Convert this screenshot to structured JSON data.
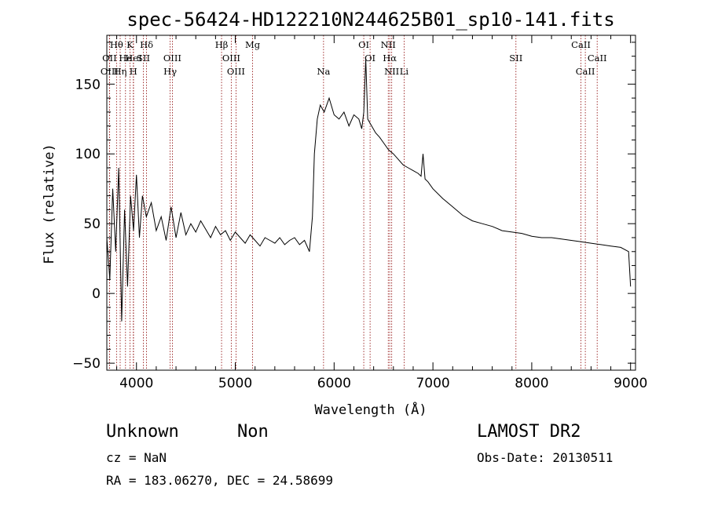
{
  "chart_data": {
    "type": "line",
    "title": "spec-56424-HD122210N244625B01_sp10-141.fits",
    "xlabel": "Wavelength (Å)",
    "ylabel": "Flux (relative)",
    "xlim": [
      3700,
      9050
    ],
    "ylim": [
      -55,
      185
    ],
    "xticks": [
      4000,
      5000,
      6000,
      7000,
      8000,
      9000
    ],
    "yticks": [
      -50,
      0,
      50,
      100,
      150
    ],
    "grid": false,
    "series": [
      {
        "x": [
          3700,
          3730,
          3760,
          3790,
          3820,
          3850,
          3880,
          3910,
          3940,
          3970,
          4000,
          4030,
          4060,
          4100,
          4150,
          4200,
          4250,
          4300,
          4350,
          4400,
          4450,
          4500,
          4550,
          4600,
          4650,
          4700,
          4750,
          4800,
          4850,
          4900,
          4950,
          5000,
          5050,
          5100,
          5150,
          5200,
          5250,
          5300,
          5350,
          5400,
          5450,
          5500,
          5550,
          5600,
          5650,
          5700,
          5750,
          5780,
          5800,
          5830,
          5860,
          5900,
          5950,
          6000,
          6050,
          6100,
          6150,
          6200,
          6250,
          6280,
          6300,
          6320,
          6340,
          6380,
          6420,
          6460,
          6500,
          6550,
          6600,
          6650,
          6700,
          6750,
          6800,
          6850,
          6880,
          6900,
          6920,
          6950,
          7000,
          7100,
          7200,
          7300,
          7400,
          7500,
          7600,
          7700,
          7800,
          7900,
          8000,
          8100,
          8200,
          8300,
          8400,
          8500,
          8600,
          8700,
          8800,
          8900,
          8980,
          9000
        ],
        "y": [
          40,
          10,
          75,
          30,
          90,
          -20,
          60,
          5,
          70,
          45,
          85,
          40,
          70,
          55,
          65,
          45,
          55,
          38,
          62,
          40,
          58,
          42,
          50,
          44,
          52,
          46,
          40,
          48,
          42,
          45,
          38,
          44,
          40,
          36,
          42,
          38,
          34,
          40,
          38,
          36,
          40,
          35,
          38,
          40,
          35,
          38,
          30,
          55,
          100,
          125,
          135,
          130,
          140,
          128,
          125,
          130,
          120,
          128,
          125,
          118,
          130,
          168,
          125,
          120,
          115,
          112,
          108,
          103,
          100,
          96,
          92,
          90,
          88,
          86,
          84,
          100,
          82,
          80,
          75,
          68,
          62,
          56,
          52,
          50,
          48,
          45,
          44,
          43,
          41,
          40,
          40,
          39,
          38,
          37,
          36,
          35,
          34,
          33,
          30,
          5
        ]
      }
    ],
    "spectral_lines": [
      {
        "label": "Hθ",
        "wavelength": 3798,
        "row": 1
      },
      {
        "label": "OII",
        "wavelength": 3727,
        "row": 2
      },
      {
        "label": "OIII",
        "wavelength": 3727,
        "row": 3
      },
      {
        "label": "He",
        "wavelength": 3889,
        "row": 2
      },
      {
        "label": "Hη",
        "wavelength": 3835,
        "row": 3
      },
      {
        "label": "K",
        "wavelength": 3934,
        "row": 1
      },
      {
        "label": "HeI",
        "wavelength": 3970,
        "row": 2
      },
      {
        "label": "H",
        "wavelength": 3968,
        "row": 3
      },
      {
        "label": "Hδ",
        "wavelength": 4102,
        "row": 1
      },
      {
        "label": "SII",
        "wavelength": 4070,
        "row": 2
      },
      {
        "label": "OIII",
        "wavelength": 4363,
        "row": 2
      },
      {
        "label": "Hγ",
        "wavelength": 4341,
        "row": 3
      },
      {
        "label": "Hβ",
        "wavelength": 4861,
        "row": 1
      },
      {
        "label": "OIII",
        "wavelength": 4959,
        "row": 2
      },
      {
        "label": "OIII",
        "wavelength": 5007,
        "row": 3
      },
      {
        "label": "Mg",
        "wavelength": 5175,
        "row": 1
      },
      {
        "label": "Na",
        "wavelength": 5893,
        "row": 3
      },
      {
        "label": "OI",
        "wavelength": 6300,
        "row": 1
      },
      {
        "label": "OI",
        "wavelength": 6364,
        "row": 2
      },
      {
        "label": "NII",
        "wavelength": 6548,
        "row": 1
      },
      {
        "label": "Hα",
        "wavelength": 6563,
        "row": 2
      },
      {
        "label": "NII",
        "wavelength": 6583,
        "row": 3
      },
      {
        "label": "Li",
        "wavelength": 6708,
        "row": 3
      },
      {
        "label": "SII",
        "wavelength": 7840,
        "row": 2
      },
      {
        "label": "CaII",
        "wavelength": 8498,
        "row": 1
      },
      {
        "label": "CaII",
        "wavelength": 8662,
        "row": 2
      },
      {
        "label": "CaII",
        "wavelength": 8542,
        "row": 3
      }
    ]
  },
  "info": {
    "class": "Unknown",
    "subclass": "Non",
    "survey": "LAMOST DR2",
    "cz": "cz = NaN",
    "obs_date": "Obs-Date: 20130511",
    "radec": "RA = 183.06270, DEC =  24.58699"
  },
  "colors": {
    "spectrum": "#000000",
    "line_markers": "#8b0000"
  }
}
